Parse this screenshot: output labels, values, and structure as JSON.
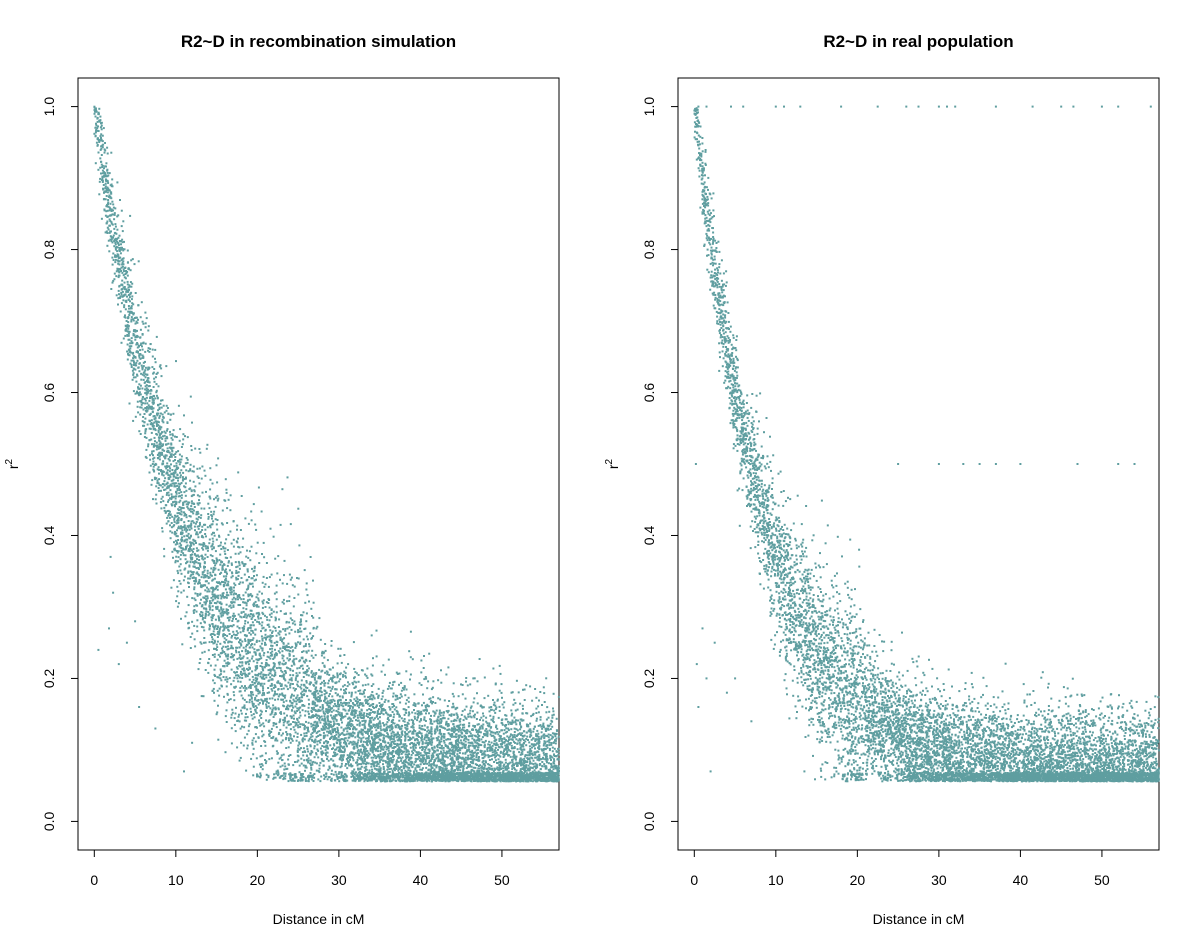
{
  "chart_data": [
    {
      "type": "scatter",
      "title": "R2~D in recombination simulation",
      "xlabel": "Distance in cM",
      "ylabel": "r",
      "ylabel_superscript": "2",
      "xlim": [
        -2,
        57
      ],
      "ylim": [
        -0.04,
        1.04
      ],
      "x_ticks": [
        0,
        10,
        20,
        30,
        40,
        50
      ],
      "y_ticks": [
        0.0,
        0.2,
        0.4,
        0.6,
        0.8,
        1.0
      ],
      "x_tick_labels": [
        "0",
        "10",
        "20",
        "30",
        "40",
        "50"
      ],
      "y_tick_labels": [
        "0.0",
        "0.2",
        "0.4",
        "0.6",
        "0.8",
        "1.0"
      ],
      "point_color": "#5f9ea0",
      "grid": false,
      "legend": "none",
      "trend": {
        "model": "0.06 + 0.94*exp(-x/11.5)",
        "x_range": [
          0,
          57
        ],
        "n_points": 9000,
        "spread": 0.055
      },
      "plateau_lines": [],
      "sample_points": [
        {
          "x": 0.5,
          "y": 1.0
        },
        {
          "x": 1.0,
          "y": 0.97
        },
        {
          "x": 2.0,
          "y": 0.9
        },
        {
          "x": 3.0,
          "y": 0.82
        },
        {
          "x": 5.0,
          "y": 0.72
        },
        {
          "x": 8.0,
          "y": 0.6
        },
        {
          "x": 10.0,
          "y": 0.52
        },
        {
          "x": 15.0,
          "y": 0.4
        },
        {
          "x": 20.0,
          "y": 0.3
        },
        {
          "x": 25.0,
          "y": 0.22
        },
        {
          "x": 30.0,
          "y": 0.16
        },
        {
          "x": 35.0,
          "y": 0.12
        },
        {
          "x": 40.0,
          "y": 0.09
        },
        {
          "x": 45.0,
          "y": 0.08
        },
        {
          "x": 50.0,
          "y": 0.07
        },
        {
          "x": 56.0,
          "y": 0.07
        }
      ],
      "outliers": [
        {
          "x": 0.5,
          "y": 0.24
        },
        {
          "x": 2.0,
          "y": 0.37
        },
        {
          "x": 2.3,
          "y": 0.32
        },
        {
          "x": 1.8,
          "y": 0.27
        },
        {
          "x": 3.0,
          "y": 0.22
        },
        {
          "x": 4.0,
          "y": 0.25
        },
        {
          "x": 5.0,
          "y": 0.28
        },
        {
          "x": 5.5,
          "y": 0.16
        },
        {
          "x": 7.5,
          "y": 0.13
        },
        {
          "x": 11.0,
          "y": 0.07
        },
        {
          "x": 12.0,
          "y": 0.11
        },
        {
          "x": 15.0,
          "y": 0.15
        },
        {
          "x": 18.0,
          "y": 0.11
        }
      ]
    },
    {
      "type": "scatter",
      "title": "R2~D in real population",
      "xlabel": "Distance in cM",
      "ylabel": "r",
      "ylabel_superscript": "2",
      "xlim": [
        -2,
        57
      ],
      "ylim": [
        -0.04,
        1.04
      ],
      "x_ticks": [
        0,
        10,
        20,
        30,
        40,
        50
      ],
      "y_ticks": [
        0.0,
        0.2,
        0.4,
        0.6,
        0.8,
        1.0
      ],
      "x_tick_labels": [
        "0",
        "10",
        "20",
        "30",
        "40",
        "50"
      ],
      "y_tick_labels": [
        "0.0",
        "0.2",
        "0.4",
        "0.6",
        "0.8",
        "1.0"
      ],
      "point_color": "#5f9ea0",
      "grid": false,
      "legend": "none",
      "trend": {
        "model": "0.06 + 0.94*exp(-x/9)",
        "x_range": [
          0,
          57
        ],
        "n_points": 9000,
        "spread": 0.05
      },
      "plateau_lines": [
        {
          "y": 1.0,
          "x": [
            0.5,
            1.5,
            4.5,
            6,
            10,
            11,
            13,
            18,
            22.5,
            26,
            27.5,
            30,
            31,
            32,
            37,
            41.5,
            45,
            46.5,
            50,
            52,
            56
          ]
        },
        {
          "y": 0.5,
          "x": [
            0.2,
            25,
            30,
            33,
            35,
            37,
            40,
            47,
            52,
            54
          ]
        }
      ],
      "sample_points": [
        {
          "x": 0.5,
          "y": 0.98
        },
        {
          "x": 1.0,
          "y": 0.93
        },
        {
          "x": 2.0,
          "y": 0.85
        },
        {
          "x": 3.0,
          "y": 0.78
        },
        {
          "x": 5.0,
          "y": 0.66
        },
        {
          "x": 8.0,
          "y": 0.52
        },
        {
          "x": 10.0,
          "y": 0.44
        },
        {
          "x": 15.0,
          "y": 0.3
        },
        {
          "x": 20.0,
          "y": 0.2
        },
        {
          "x": 25.0,
          "y": 0.15
        },
        {
          "x": 30.0,
          "y": 0.11
        },
        {
          "x": 35.0,
          "y": 0.09
        },
        {
          "x": 40.0,
          "y": 0.08
        },
        {
          "x": 45.0,
          "y": 0.07
        },
        {
          "x": 50.0,
          "y": 0.065
        },
        {
          "x": 56.0,
          "y": 0.065
        }
      ],
      "outliers": [
        {
          "x": 0.3,
          "y": 0.22
        },
        {
          "x": 0.5,
          "y": 0.16
        },
        {
          "x": 1.0,
          "y": 0.27
        },
        {
          "x": 1.5,
          "y": 0.2
        },
        {
          "x": 2.0,
          "y": 0.07
        },
        {
          "x": 2.5,
          "y": 0.25
        },
        {
          "x": 4.0,
          "y": 0.18
        },
        {
          "x": 5.0,
          "y": 0.2
        },
        {
          "x": 7.0,
          "y": 0.14
        },
        {
          "x": 13.5,
          "y": 0.07
        },
        {
          "x": 14.0,
          "y": 0.12
        },
        {
          "x": 11.0,
          "y": 0.35
        }
      ]
    }
  ]
}
